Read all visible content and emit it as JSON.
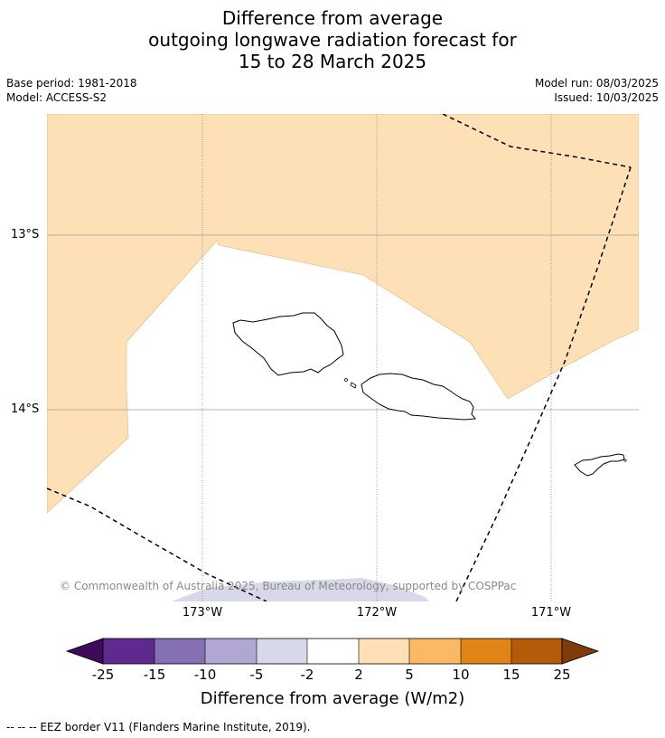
{
  "title": {
    "line1": "Difference from average",
    "line2": "outgoing longwave radiation forecast for",
    "line3": "15 to 28 March 2025"
  },
  "meta": {
    "base_period": "Base period: 1981-2018",
    "model": "Model: ACCESS-S2",
    "model_run": "Model run: 08/03/2025",
    "issued": "Issued: 10/03/2025"
  },
  "map": {
    "lat_labels": [
      "13°S",
      "14°S"
    ],
    "lon_labels": [
      "173°W",
      "172°W",
      "171°W"
    ],
    "copyright": "© Commonwealth of Australia 2025, Bureau of Meteorology, supported by COSPPac",
    "anomaly_colors": {
      "light_orange": "#fde0b6",
      "light_purple": "#d8d8eb"
    }
  },
  "colorbar": {
    "title": "Difference from average (W/m2)",
    "ticks": [
      "-25",
      "-15",
      "-10",
      "-5",
      "-2",
      "2",
      "5",
      "10",
      "15",
      "25"
    ],
    "colors": [
      "#3f0a59",
      "#5e2a8f",
      "#8470b2",
      "#b0a8d3",
      "#d8d8eb",
      "#ffffff",
      "#fde0b6",
      "#fbb965",
      "#e08414",
      "#b55a08",
      "#7f3b08"
    ]
  },
  "footer": {
    "legend": "--  --  -- EEZ border V11 (Flanders Marine Institute, 2019)."
  }
}
